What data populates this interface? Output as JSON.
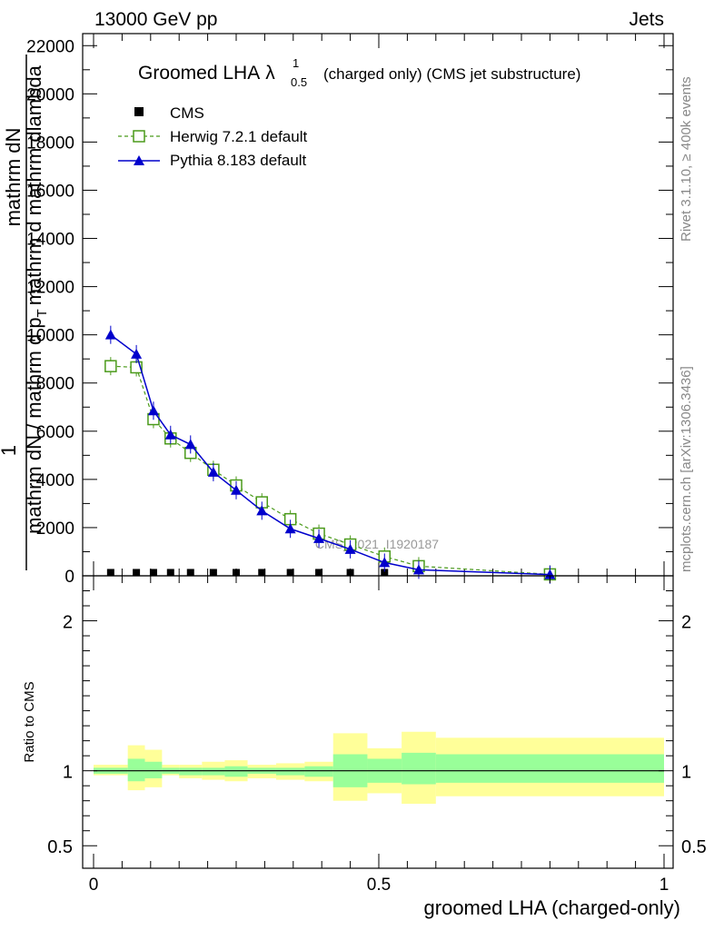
{
  "header": {
    "energy_label": "13000 GeV pp",
    "category_label": "Jets"
  },
  "side_labels": {
    "rivet": "Rivet 3.1.10, ≥ 400k events",
    "source": "mcplots.cern.ch [arXiv:1306.3436]"
  },
  "watermark": "CMS_2021_I1920187",
  "chart_data": [
    {
      "type": "line",
      "title_main": "Groomed LHA",
      "title_symbol": "λ",
      "title_sup": "1",
      "title_sub": "0.5",
      "title_rest": "(charged only) (CMS jet substructure)",
      "ylabel_prefix": "1",
      "ylabel_top": "mathrm dN",
      "ylabel_bottom": "mathrm dN / mathrm d p",
      "ylabel_bottom_sub": "T",
      "ylabel_bottom_tail": "mathrm d mathrm dlambda",
      "ylabel_denominator": "mathrm d p",
      "ylabel_denominator_sub": "T",
      "ylabel_denominator_tail": "mathrm d mathrm dlambda",
      "ylim": [
        0,
        22500
      ],
      "yticks": [
        0,
        2000,
        4000,
        6000,
        8000,
        10000,
        12000,
        14000,
        16000,
        18000,
        20000,
        22000
      ],
      "ytick_labels": [
        "0",
        "2000",
        "4000",
        "6000",
        "8000",
        "10000",
        "12000",
        "14000",
        "16000",
        "18000",
        "20000",
        "22000"
      ],
      "xlim": [
        0,
        1
      ],
      "legend_position": "top-left",
      "series": [
        {
          "name": "CMS",
          "color": "#000000",
          "marker": "square-filled",
          "x": [
            0.03,
            0.075,
            0.105,
            0.135,
            0.17,
            0.21,
            0.25,
            0.295,
            0.345,
            0.395,
            0.45,
            0.51
          ],
          "values": [
            20,
            20,
            20,
            20,
            20,
            20,
            20,
            20,
            20,
            20,
            20,
            20
          ]
        },
        {
          "name": "Herwig 7.2.1 default",
          "color": "#4a9a1a",
          "marker": "square-open",
          "dashed": true,
          "x": [
            0.03,
            0.075,
            0.105,
            0.135,
            0.17,
            0.21,
            0.25,
            0.295,
            0.345,
            0.395,
            0.45,
            0.51,
            0.57,
            0.8
          ],
          "values": [
            8700,
            8650,
            6500,
            5700,
            5100,
            4400,
            3750,
            3050,
            2350,
            1750,
            1300,
            800,
            400,
            60
          ]
        },
        {
          "name": "Pythia 8.183 default",
          "color": "#0000cc",
          "marker": "triangle-filled",
          "x": [
            0.03,
            0.075,
            0.105,
            0.135,
            0.17,
            0.21,
            0.25,
            0.295,
            0.345,
            0.395,
            0.45,
            0.51,
            0.57,
            0.8
          ],
          "values": [
            10000,
            9200,
            6850,
            5850,
            5450,
            4300,
            3550,
            2700,
            1950,
            1550,
            1100,
            550,
            250,
            50
          ]
        }
      ]
    },
    {
      "type": "area",
      "ylabel": "Ratio to CMS",
      "xlabel": "groomed LHA (charged-only)",
      "xlim": [
        0,
        1
      ],
      "xticks": [
        0,
        0.5,
        1
      ],
      "xtick_labels": [
        "0",
        "0.5",
        "1"
      ],
      "ylim": [
        0.35,
        2.3
      ],
      "yticks": [
        0.5,
        1,
        2
      ],
      "ytick_labels": [
        "0.5",
        "1",
        "2"
      ],
      "reference_line": 1,
      "bins": [
        0,
        0.06,
        0.09,
        0.12,
        0.15,
        0.19,
        0.23,
        0.27,
        0.32,
        0.37,
        0.42,
        0.48,
        0.54,
        0.6,
        1.0
      ],
      "band_stat": {
        "color": "#99ff99",
        "lower": [
          0.98,
          0.93,
          0.95,
          0.98,
          0.97,
          0.97,
          0.96,
          0.98,
          0.97,
          0.96,
          0.89,
          0.92,
          0.91,
          0.92
        ],
        "upper": [
          1.02,
          1.08,
          1.06,
          1.02,
          1.02,
          1.02,
          1.03,
          1.02,
          1.02,
          1.03,
          1.11,
          1.08,
          1.12,
          1.11
        ]
      },
      "band_total": {
        "color": "#ffff99",
        "lower": [
          0.97,
          0.87,
          0.89,
          0.97,
          0.95,
          0.94,
          0.93,
          0.95,
          0.94,
          0.93,
          0.8,
          0.85,
          0.78,
          0.83
        ],
        "upper": [
          1.04,
          1.17,
          1.14,
          1.04,
          1.04,
          1.06,
          1.07,
          1.04,
          1.05,
          1.06,
          1.25,
          1.15,
          1.26,
          1.22
        ]
      }
    }
  ]
}
